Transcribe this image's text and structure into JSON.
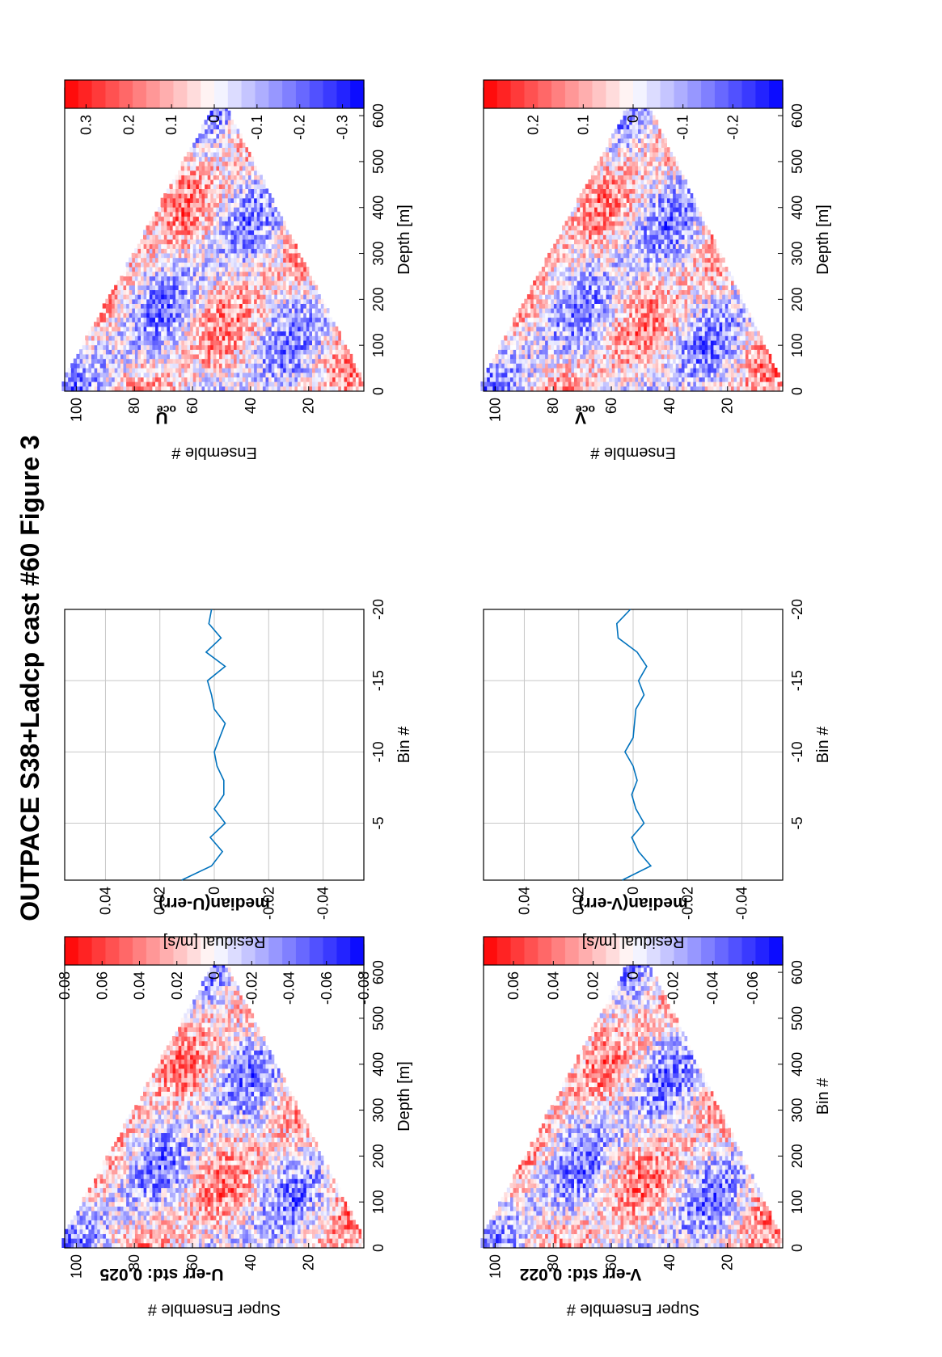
{
  "figure": {
    "title": "OUTPACE S38+Ladcp cast #60  Figure 3"
  },
  "colors": {
    "red": "#ff0000",
    "blue": "#0000ff",
    "line": "#0072bd",
    "grid": "#c8c8c8"
  },
  "chart_data": [
    {
      "id": "uerr",
      "type": "heatmap",
      "title": "U-err std: 0.025",
      "xlabel": "Super Ensemble #",
      "ylabel": "Depth [m]",
      "xlim": [
        1,
        104
      ],
      "ylim": [
        0,
        660
      ],
      "xticks": [
        "20",
        "40",
        "60",
        "80",
        "100"
      ],
      "yticks": [
        "0",
        "100",
        "200",
        "300",
        "400",
        "500",
        "600"
      ],
      "field": {
        "max_depth": 640,
        "apex": 50,
        "amplitude": 0.08,
        "seed": 11
      },
      "colorbar": {
        "clim": [
          -0.08,
          0.08
        ],
        "ticks": [
          "0.08",
          "0.06",
          "0.04",
          "0.02",
          "0",
          "-0.02",
          "-0.04",
          "-0.06",
          "-0.08"
        ]
      }
    },
    {
      "id": "verr",
      "type": "heatmap",
      "title": "V-err std: 0.022",
      "xlabel": "Super Ensemble #",
      "ylabel": "Bin #",
      "xlim": [
        1,
        104
      ],
      "ylim": [
        0,
        660
      ],
      "xticks": [
        "20",
        "40",
        "60",
        "80",
        "100"
      ],
      "yticks": [
        "0",
        "100",
        "200",
        "300",
        "400",
        "500",
        "600"
      ],
      "field": {
        "max_depth": 660,
        "apex": 50,
        "amplitude": 0.07,
        "seed": 23
      },
      "colorbar": {
        "clim": [
          -0.075,
          0.075
        ],
        "ticks": [
          "0.06",
          "0.04",
          "0.02",
          "0",
          "-0.02",
          "-0.04",
          "-0.06"
        ]
      }
    },
    {
      "id": "uline",
      "type": "line",
      "title": "median(U-err)",
      "xlabel": "Residual [m/s]",
      "ylabel": "Bin #",
      "xlim": [
        -0.055,
        0.055
      ],
      "ylim": [
        -20,
        -1
      ],
      "xticks": [
        "-0.04",
        "-0.02",
        "0",
        "0.02",
        "0.04"
      ],
      "yticks": [
        "-5",
        "-10",
        "-15",
        "-20"
      ],
      "grid": true,
      "points": [
        {
          "x": 0.012,
          "y": -1
        },
        {
          "x": 0.001,
          "y": -2
        },
        {
          "x": -0.003,
          "y": -3
        },
        {
          "x": 0.0015,
          "y": -4
        },
        {
          "x": -0.004,
          "y": -5
        },
        {
          "x": 0.0,
          "y": -6
        },
        {
          "x": -0.0035,
          "y": -7
        },
        {
          "x": -0.0035,
          "y": -8
        },
        {
          "x": -0.001,
          "y": -9
        },
        {
          "x": 0.0,
          "y": -10
        },
        {
          "x": -0.002,
          "y": -11
        },
        {
          "x": -0.004,
          "y": -12
        },
        {
          "x": 0.0,
          "y": -13
        },
        {
          "x": 0.001,
          "y": -14
        },
        {
          "x": 0.0025,
          "y": -15
        },
        {
          "x": -0.004,
          "y": -16
        },
        {
          "x": 0.003,
          "y": -17
        },
        {
          "x": -0.0025,
          "y": -18
        },
        {
          "x": 0.002,
          "y": -19
        },
        {
          "x": 0.001,
          "y": -20
        }
      ]
    },
    {
      "id": "vline",
      "type": "line",
      "title": "median(V-err)",
      "xlabel": "Residual [m/s]",
      "ylabel": "Bin #",
      "xlim": [
        -0.055,
        0.055
      ],
      "ylim": [
        -20,
        -1
      ],
      "xticks": [
        "-0.04",
        "-0.02",
        "0",
        "0.02",
        "0.04"
      ],
      "yticks": [
        "-5",
        "-10",
        "-15",
        "-20"
      ],
      "grid": true,
      "points": [
        {
          "x": 0.004,
          "y": -1
        },
        {
          "x": -0.0065,
          "y": -2
        },
        {
          "x": -0.002,
          "y": -3
        },
        {
          "x": 0.0005,
          "y": -4
        },
        {
          "x": -0.004,
          "y": -5
        },
        {
          "x": -0.001,
          "y": -6
        },
        {
          "x": 0.0005,
          "y": -7
        },
        {
          "x": -0.0015,
          "y": -8
        },
        {
          "x": 0.0,
          "y": -9
        },
        {
          "x": 0.003,
          "y": -10
        },
        {
          "x": 0.0,
          "y": -11
        },
        {
          "x": -0.0005,
          "y": -12
        },
        {
          "x": -0.001,
          "y": -13
        },
        {
          "x": -0.004,
          "y": -14
        },
        {
          "x": -0.002,
          "y": -15
        },
        {
          "x": -0.005,
          "y": -16
        },
        {
          "x": -0.0015,
          "y": -17
        },
        {
          "x": 0.0055,
          "y": -18
        },
        {
          "x": 0.006,
          "y": -19
        },
        {
          "x": 0.001,
          "y": -20
        }
      ]
    },
    {
      "id": "uoce",
      "type": "heatmap",
      "title": "U",
      "title_sub": "oce",
      "xlabel": "Ensemble #",
      "ylabel": "Depth [m]",
      "xlim": [
        1,
        104
      ],
      "ylim": [
        0,
        660
      ],
      "xticks": [
        "20",
        "40",
        "60",
        "80",
        "100"
      ],
      "yticks": [
        "0",
        "100",
        "200",
        "300",
        "400",
        "500",
        "600"
      ],
      "field": {
        "max_depth": 640,
        "apex": 50,
        "amplitude": 0.3,
        "seed": 5
      },
      "colorbar": {
        "clim": [
          -0.35,
          0.35
        ],
        "ticks": [
          "0.3",
          "0.2",
          "0.1",
          "0",
          "-0.1",
          "-0.2",
          "-0.3"
        ]
      }
    },
    {
      "id": "voce",
      "type": "heatmap",
      "title": "V",
      "title_sub": "oce",
      "xlabel": "Ensemble #",
      "ylabel": "Depth [m]",
      "xlim": [
        1,
        104
      ],
      "ylim": [
        0,
        660
      ],
      "xticks": [
        "20",
        "40",
        "60",
        "80",
        "100"
      ],
      "yticks": [
        "0",
        "100",
        "200",
        "300",
        "400",
        "500",
        "600"
      ],
      "field": {
        "max_depth": 660,
        "apex": 50,
        "amplitude": 0.25,
        "seed": 7
      },
      "colorbar": {
        "clim": [
          -0.3,
          0.3
        ],
        "ticks": [
          "0.2",
          "0.1",
          "0",
          "-0.1",
          "-0.2"
        ]
      }
    }
  ]
}
